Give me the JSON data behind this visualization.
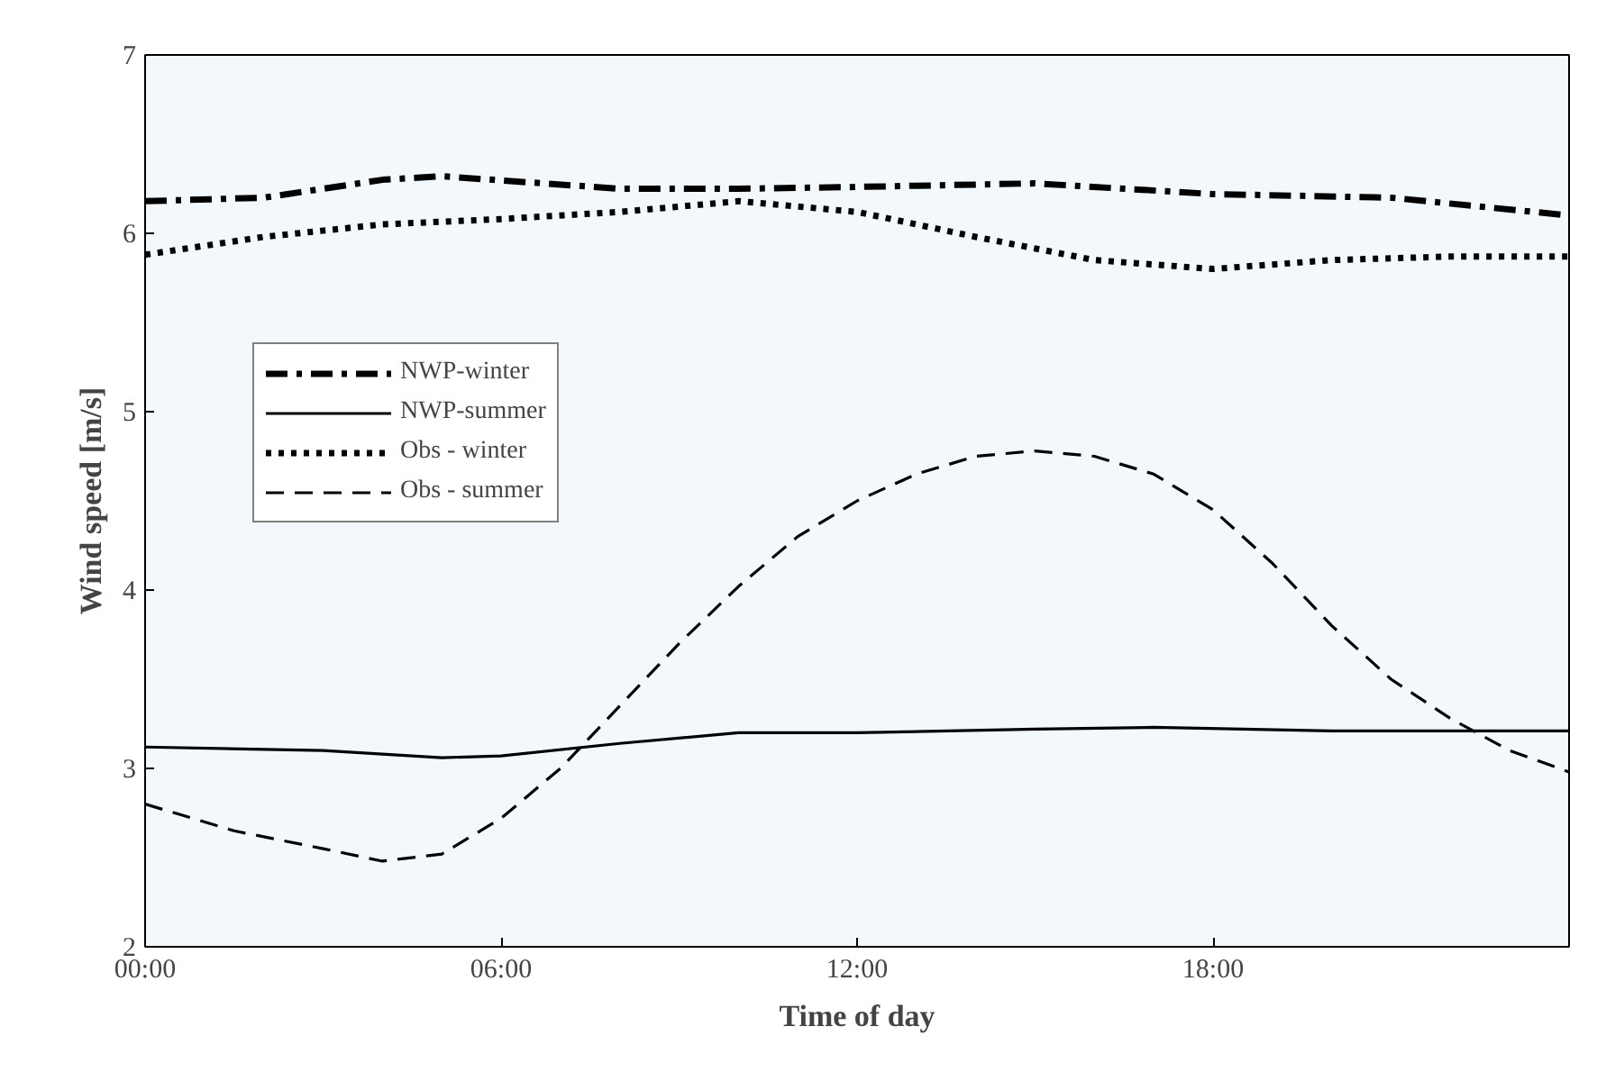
{
  "chart_data": {
    "type": "line",
    "xlabel": "Time of day",
    "ylabel": "Wind speed [m/s]",
    "xlim": [
      0,
      24
    ],
    "ylim": [
      2,
      7
    ],
    "xticks": [
      {
        "value": 0,
        "label": "00:00"
      },
      {
        "value": 6,
        "label": "06:00"
      },
      {
        "value": 12,
        "label": "12:00"
      },
      {
        "value": 18,
        "label": "18:00"
      }
    ],
    "yticks": [
      2,
      3,
      4,
      5,
      6,
      7
    ],
    "grid": false,
    "legend": "top left",
    "marker": "none",
    "series": [
      {
        "name": "NWP-winter",
        "color": "#000000",
        "line_style": "dashdot",
        "x": [
          0,
          2,
          4,
          5,
          8,
          10,
          12,
          15,
          18,
          21,
          24
        ],
        "values": [
          6.18,
          6.2,
          6.3,
          6.32,
          6.25,
          6.25,
          6.26,
          6.28,
          6.22,
          6.2,
          6.1
        ]
      },
      {
        "name": "NWP-summer",
        "color": "#000000",
        "line_style": "solid",
        "x": [
          0,
          3,
          5,
          6,
          8,
          10,
          12,
          15,
          17,
          20,
          24
        ],
        "values": [
          3.12,
          3.1,
          3.06,
          3.07,
          3.14,
          3.2,
          3.2,
          3.22,
          3.23,
          3.21,
          3.21
        ]
      },
      {
        "name": "Obs - winter",
        "color": "#000000",
        "line_style": "dotted",
        "x": [
          0,
          2,
          4,
          6,
          8,
          10,
          12,
          14,
          16,
          18,
          20,
          22,
          24
        ],
        "values": [
          5.88,
          5.98,
          6.05,
          6.08,
          6.12,
          6.18,
          6.12,
          5.98,
          5.85,
          5.8,
          5.85,
          5.87,
          5.87
        ]
      },
      {
        "name": "Obs - summer",
        "color": "#000000",
        "line_style": "dashed",
        "x": [
          0,
          1.5,
          3,
          4,
          5,
          6,
          7,
          8,
          9,
          10,
          11,
          12,
          13,
          14,
          15,
          16,
          17,
          18,
          19,
          20,
          21,
          22,
          23,
          24
        ],
        "values": [
          2.8,
          2.65,
          2.55,
          2.48,
          2.52,
          2.72,
          3.0,
          3.35,
          3.7,
          4.02,
          4.3,
          4.5,
          4.65,
          4.75,
          4.78,
          4.75,
          4.65,
          4.45,
          4.15,
          3.8,
          3.5,
          3.28,
          3.1,
          2.98
        ]
      }
    ]
  }
}
